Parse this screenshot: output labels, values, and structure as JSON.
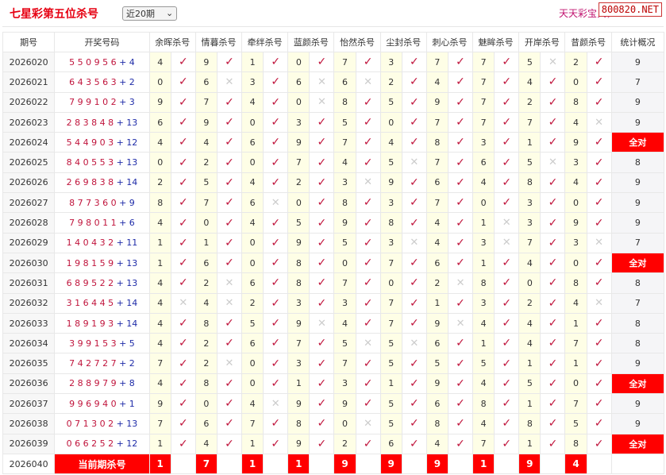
{
  "header": {
    "title": "七星彩第五位杀号",
    "period_select": "近20期",
    "slogan": "天天彩宝贝，",
    "watermark": "800820.NET"
  },
  "columns": [
    "期号",
    "开奖号码",
    "余晖杀号",
    "情暮杀号",
    "牵绊杀号",
    "蓝颜杀号",
    "怡然杀号",
    "尘封杀号",
    "刺心杀号",
    "魅眸杀号",
    "开岸杀号",
    "昔颜杀号",
    "统计概况"
  ],
  "marks": {
    "hit": "✓",
    "miss": "✕"
  },
  "colors": {
    "accent": "#ff0000",
    "hit": "#c0143c",
    "number_bg": "#fefee6"
  },
  "rows": [
    {
      "issue": "2026020",
      "main": "550956",
      "extra": "4",
      "kills": [
        [
          4,
          1
        ],
        [
          9,
          1
        ],
        [
          1,
          1
        ],
        [
          0,
          1
        ],
        [
          7,
          1
        ],
        [
          3,
          1
        ],
        [
          7,
          1
        ],
        [
          7,
          1
        ],
        [
          5,
          0
        ],
        [
          2,
          1
        ]
      ],
      "stat": "9"
    },
    {
      "issue": "2026021",
      "main": "643563",
      "extra": "2",
      "kills": [
        [
          0,
          1
        ],
        [
          6,
          0
        ],
        [
          3,
          1
        ],
        [
          6,
          0
        ],
        [
          6,
          0
        ],
        [
          2,
          1
        ],
        [
          4,
          1
        ],
        [
          7,
          1
        ],
        [
          4,
          1
        ],
        [
          0,
          1
        ]
      ],
      "stat": "7"
    },
    {
      "issue": "2026022",
      "main": "799102",
      "extra": "3",
      "kills": [
        [
          9,
          1
        ],
        [
          7,
          1
        ],
        [
          4,
          1
        ],
        [
          0,
          0
        ],
        [
          8,
          1
        ],
        [
          5,
          1
        ],
        [
          9,
          1
        ],
        [
          7,
          1
        ],
        [
          2,
          1
        ],
        [
          8,
          1
        ]
      ],
      "stat": "9"
    },
    {
      "issue": "2026023",
      "main": "283848",
      "extra": "13",
      "kills": [
        [
          6,
          1
        ],
        [
          9,
          1
        ],
        [
          0,
          1
        ],
        [
          3,
          1
        ],
        [
          5,
          1
        ],
        [
          0,
          1
        ],
        [
          7,
          1
        ],
        [
          7,
          1
        ],
        [
          7,
          1
        ],
        [
          4,
          0
        ]
      ],
      "stat": "9"
    },
    {
      "issue": "2026024",
      "main": "544903",
      "extra": "12",
      "kills": [
        [
          4,
          1
        ],
        [
          4,
          1
        ],
        [
          6,
          1
        ],
        [
          9,
          1
        ],
        [
          7,
          1
        ],
        [
          4,
          1
        ],
        [
          8,
          1
        ],
        [
          3,
          1
        ],
        [
          1,
          1
        ],
        [
          9,
          1
        ]
      ],
      "stat": "全对"
    },
    {
      "issue": "2026025",
      "main": "840553",
      "extra": "13",
      "kills": [
        [
          0,
          1
        ],
        [
          2,
          1
        ],
        [
          0,
          1
        ],
        [
          7,
          1
        ],
        [
          4,
          1
        ],
        [
          5,
          0
        ],
        [
          7,
          1
        ],
        [
          6,
          1
        ],
        [
          5,
          0
        ],
        [
          3,
          1
        ]
      ],
      "stat": "8"
    },
    {
      "issue": "2026026",
      "main": "269838",
      "extra": "14",
      "kills": [
        [
          2,
          1
        ],
        [
          5,
          1
        ],
        [
          4,
          1
        ],
        [
          2,
          1
        ],
        [
          3,
          0
        ],
        [
          9,
          1
        ],
        [
          6,
          1
        ],
        [
          4,
          1
        ],
        [
          8,
          1
        ],
        [
          4,
          1
        ]
      ],
      "stat": "9"
    },
    {
      "issue": "2026027",
      "main": "877360",
      "extra": "9",
      "kills": [
        [
          8,
          1
        ],
        [
          7,
          1
        ],
        [
          6,
          0
        ],
        [
          0,
          1
        ],
        [
          8,
          1
        ],
        [
          3,
          1
        ],
        [
          7,
          1
        ],
        [
          0,
          1
        ],
        [
          3,
          1
        ],
        [
          0,
          1
        ]
      ],
      "stat": "9"
    },
    {
      "issue": "2026028",
      "main": "798011",
      "extra": "6",
      "kills": [
        [
          4,
          1
        ],
        [
          0,
          1
        ],
        [
          4,
          1
        ],
        [
          5,
          1
        ],
        [
          9,
          1
        ],
        [
          8,
          1
        ],
        [
          4,
          1
        ],
        [
          1,
          0
        ],
        [
          3,
          1
        ],
        [
          9,
          1
        ]
      ],
      "stat": "9"
    },
    {
      "issue": "2026029",
      "main": "140432",
      "extra": "11",
      "kills": [
        [
          1,
          1
        ],
        [
          1,
          1
        ],
        [
          0,
          1
        ],
        [
          9,
          1
        ],
        [
          5,
          1
        ],
        [
          3,
          0
        ],
        [
          4,
          1
        ],
        [
          3,
          0
        ],
        [
          7,
          1
        ],
        [
          3,
          0
        ]
      ],
      "stat": "7"
    },
    {
      "issue": "2026030",
      "main": "198159",
      "extra": "13",
      "kills": [
        [
          1,
          1
        ],
        [
          6,
          1
        ],
        [
          0,
          1
        ],
        [
          8,
          1
        ],
        [
          0,
          1
        ],
        [
          7,
          1
        ],
        [
          6,
          1
        ],
        [
          1,
          1
        ],
        [
          4,
          1
        ],
        [
          0,
          1
        ]
      ],
      "stat": "全对"
    },
    {
      "issue": "2026031",
      "main": "689522",
      "extra": "13",
      "kills": [
        [
          4,
          1
        ],
        [
          2,
          0
        ],
        [
          6,
          1
        ],
        [
          8,
          1
        ],
        [
          7,
          1
        ],
        [
          0,
          1
        ],
        [
          2,
          0
        ],
        [
          8,
          1
        ],
        [
          0,
          1
        ],
        [
          8,
          1
        ]
      ],
      "stat": "8"
    },
    {
      "issue": "2026032",
      "main": "316445",
      "extra": "14",
      "kills": [
        [
          4,
          0
        ],
        [
          4,
          0
        ],
        [
          2,
          1
        ],
        [
          3,
          1
        ],
        [
          3,
          1
        ],
        [
          7,
          1
        ],
        [
          1,
          1
        ],
        [
          3,
          1
        ],
        [
          2,
          1
        ],
        [
          4,
          0
        ]
      ],
      "stat": "7"
    },
    {
      "issue": "2026033",
      "main": "189193",
      "extra": "14",
      "kills": [
        [
          4,
          1
        ],
        [
          8,
          1
        ],
        [
          5,
          1
        ],
        [
          9,
          0
        ],
        [
          4,
          1
        ],
        [
          7,
          1
        ],
        [
          9,
          0
        ],
        [
          4,
          1
        ],
        [
          4,
          1
        ],
        [
          1,
          1
        ]
      ],
      "stat": "8"
    },
    {
      "issue": "2026034",
      "main": "399153",
      "extra": "5",
      "kills": [
        [
          4,
          1
        ],
        [
          2,
          1
        ],
        [
          6,
          1
        ],
        [
          7,
          1
        ],
        [
          5,
          0
        ],
        [
          5,
          0
        ],
        [
          6,
          1
        ],
        [
          1,
          1
        ],
        [
          4,
          1
        ],
        [
          7,
          1
        ]
      ],
      "stat": "8"
    },
    {
      "issue": "2026035",
      "main": "742727",
      "extra": "2",
      "kills": [
        [
          7,
          1
        ],
        [
          2,
          0
        ],
        [
          0,
          1
        ],
        [
          3,
          1
        ],
        [
          7,
          1
        ],
        [
          5,
          1
        ],
        [
          5,
          1
        ],
        [
          5,
          1
        ],
        [
          1,
          1
        ],
        [
          1,
          1
        ]
      ],
      "stat": "9"
    },
    {
      "issue": "2026036",
      "main": "288979",
      "extra": "8",
      "kills": [
        [
          4,
          1
        ],
        [
          8,
          1
        ],
        [
          0,
          1
        ],
        [
          1,
          1
        ],
        [
          3,
          1
        ],
        [
          1,
          1
        ],
        [
          9,
          1
        ],
        [
          4,
          1
        ],
        [
          5,
          1
        ],
        [
          0,
          1
        ]
      ],
      "stat": "全对"
    },
    {
      "issue": "2026037",
      "main": "996940",
      "extra": "1",
      "kills": [
        [
          9,
          1
        ],
        [
          0,
          1
        ],
        [
          4,
          0
        ],
        [
          9,
          1
        ],
        [
          9,
          1
        ],
        [
          5,
          1
        ],
        [
          6,
          1
        ],
        [
          8,
          1
        ],
        [
          1,
          1
        ],
        [
          7,
          1
        ]
      ],
      "stat": "9"
    },
    {
      "issue": "2026038",
      "main": "071302",
      "extra": "13",
      "kills": [
        [
          7,
          1
        ],
        [
          6,
          1
        ],
        [
          7,
          1
        ],
        [
          8,
          1
        ],
        [
          0,
          0
        ],
        [
          5,
          1
        ],
        [
          8,
          1
        ],
        [
          4,
          1
        ],
        [
          8,
          1
        ],
        [
          5,
          1
        ]
      ],
      "stat": "9"
    },
    {
      "issue": "2026039",
      "main": "066252",
      "extra": "12",
      "kills": [
        [
          1,
          1
        ],
        [
          4,
          1
        ],
        [
          1,
          1
        ],
        [
          9,
          1
        ],
        [
          2,
          1
        ],
        [
          6,
          1
        ],
        [
          4,
          1
        ],
        [
          7,
          1
        ],
        [
          1,
          1
        ],
        [
          8,
          1
        ]
      ],
      "stat": "全对"
    }
  ],
  "current": {
    "issue": "2026040",
    "label": "当前期杀号",
    "kills": [
      1,
      7,
      1,
      1,
      9,
      9,
      9,
      1,
      9,
      4
    ]
  }
}
